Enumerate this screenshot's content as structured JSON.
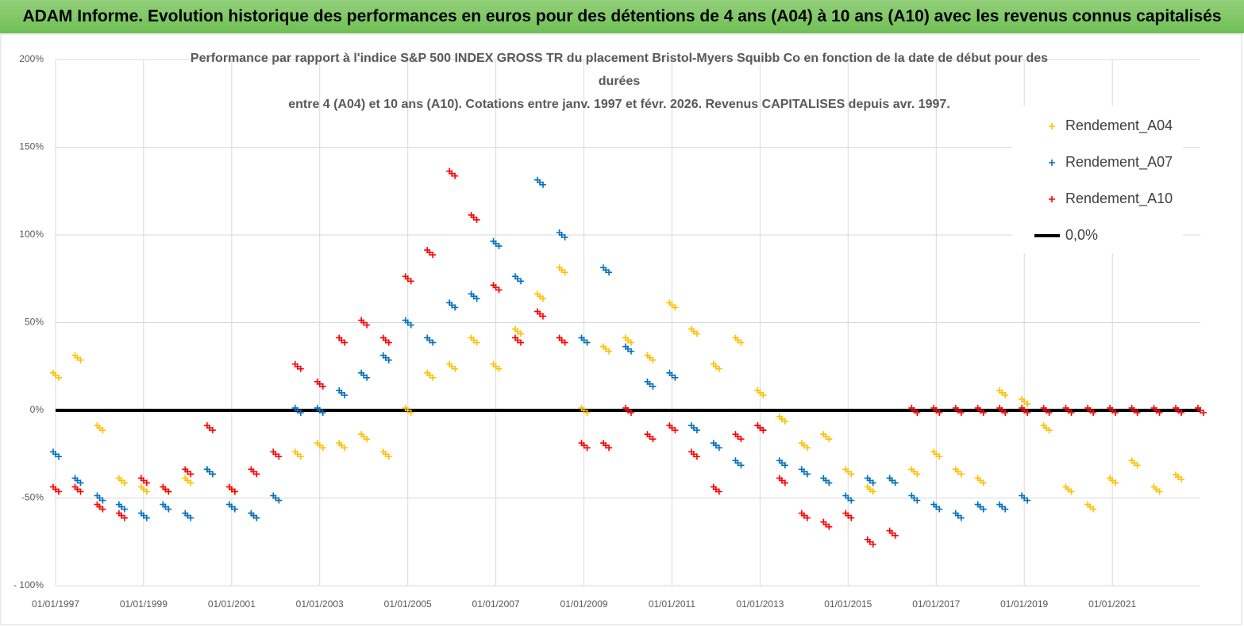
{
  "header": {
    "title": "ADAM Informe. Evolution historique des performances en euros pour des détentions de 4 ans (A04) à 10 ans (A10) avec les revenus connus capitalisés"
  },
  "chart_data": {
    "type": "scatter",
    "title": [
      "Performance par rapport à l'indice S&P 500 INDEX GROSS TR  du placement Bristol-Myers Squibb Co en fonction de la date de début pour des",
      "durées",
      "entre 4 (A04) et 10 ans (A10). Cotations entre janv. 1997 et févr. 2026. Revenus CAPITALISES depuis avr. 1997."
    ],
    "x": [
      "01/01/1997",
      "01/07/1997",
      "01/01/1998",
      "01/07/1998",
      "01/01/1999",
      "01/07/1999",
      "01/01/2000",
      "01/07/2000",
      "01/01/2001",
      "01/07/2001",
      "01/01/2002",
      "01/07/2002",
      "01/01/2003",
      "01/07/2003",
      "01/01/2004",
      "01/07/2004",
      "01/01/2005",
      "01/07/2005",
      "01/01/2006",
      "01/07/2006",
      "01/01/2007",
      "01/07/2007",
      "01/01/2008",
      "01/07/2008",
      "01/01/2009",
      "01/07/2009",
      "01/01/2010",
      "01/07/2010",
      "01/01/2011",
      "01/07/2011",
      "01/01/2012",
      "01/07/2012",
      "01/01/2013",
      "01/07/2013",
      "01/01/2014",
      "01/07/2014",
      "01/01/2015",
      "01/07/2015",
      "01/01/2016",
      "01/07/2016",
      "01/01/2017",
      "01/07/2017",
      "01/01/2018",
      "01/07/2018",
      "01/01/2019",
      "01/07/2019",
      "01/01/2020",
      "01/07/2020",
      "01/01/2021",
      "01/07/2021",
      "01/01/2022",
      "01/07/2022",
      "01/01/2023"
    ],
    "series": [
      {
        "name": "Rendement_A04",
        "color": "#ffc000",
        "values": [
          20,
          30,
          -10,
          -40,
          -45,
          -45,
          -40,
          -35,
          -45,
          -60,
          -50,
          -25,
          -20,
          -20,
          -15,
          -25,
          0,
          20,
          25,
          40,
          25,
          45,
          65,
          80,
          0,
          35,
          40,
          30,
          60,
          45,
          25,
          40,
          10,
          -5,
          -20,
          -15,
          -35,
          -45,
          -40,
          -35,
          -25,
          -35,
          -40,
          10,
          5,
          -10,
          -45,
          -55,
          -40,
          -30,
          -45,
          -38,
          null
        ]
      },
      {
        "name": "Rendement_A07",
        "color": "#0070c0",
        "values": [
          -25,
          -40,
          -50,
          -55,
          -60,
          -55,
          -60,
          -35,
          -55,
          -60,
          -50,
          0,
          0,
          10,
          20,
          30,
          50,
          40,
          60,
          65,
          95,
          75,
          130,
          100,
          40,
          80,
          35,
          15,
          20,
          -10,
          -20,
          -30,
          -10,
          -30,
          -35,
          -40,
          -50,
          -40,
          -40,
          -50,
          -55,
          -60,
          -55,
          -55,
          -50,
          null,
          null,
          null,
          null,
          null,
          null,
          null,
          null
        ]
      },
      {
        "name": "Rendement_A10",
        "color": "#ff0000",
        "values": [
          -45,
          -45,
          -55,
          -60,
          -40,
          -45,
          -35,
          -10,
          -45,
          -35,
          -25,
          25,
          15,
          40,
          50,
          40,
          75,
          90,
          135,
          110,
          70,
          40,
          55,
          40,
          -20,
          -20,
          0,
          -15,
          -10,
          -25,
          -45,
          -15,
          -10,
          -40,
          -60,
          -65,
          -60,
          -75,
          -70,
          0,
          0,
          0,
          0,
          0,
          0,
          0,
          0,
          0,
          0,
          0,
          0,
          0,
          0
        ]
      }
    ],
    "hline": {
      "name": "0,0%",
      "value": 0,
      "color": "#000000"
    },
    "xlim": [
      "01/01/1997",
      "01/01/2023"
    ],
    "xticks": [
      "01/01/1997",
      "01/01/1999",
      "01/01/2001",
      "01/01/2003",
      "01/01/2005",
      "01/01/2007",
      "01/01/2009",
      "01/01/2011",
      "01/01/2013",
      "01/01/2015",
      "01/01/2017",
      "01/01/2019",
      "01/01/2021"
    ],
    "ylim": [
      -100,
      200
    ],
    "yticks": [
      {
        "value": -100,
        "label": "- 100%"
      },
      {
        "value": -50,
        "label": "-50%"
      },
      {
        "value": 0,
        "label": "0%"
      },
      {
        "value": 50,
        "label": "50%"
      },
      {
        "value": 100,
        "label": "100%"
      },
      {
        "value": 150,
        "label": "150%"
      },
      {
        "value": 200,
        "label": "200%"
      }
    ],
    "grid": true,
    "legend": "upper right"
  }
}
